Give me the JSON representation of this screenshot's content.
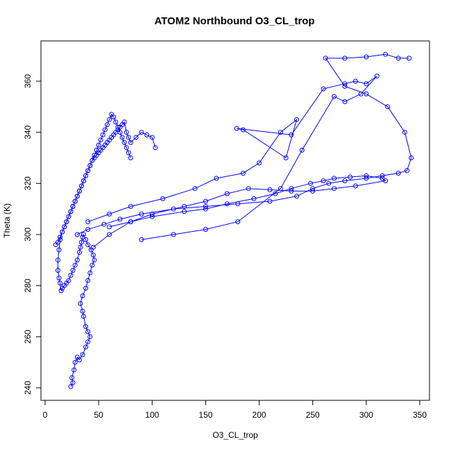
{
  "chart_data": {
    "type": "scatter",
    "title": "ATOM2 Northbound O3_CL_trop",
    "xlabel": "O3_CL_trop",
    "ylabel": "Theta (K)",
    "xlim": [
      0,
      350
    ],
    "ylim": [
      240,
      370
    ],
    "x_ticks": [
      0,
      50,
      100,
      150,
      200,
      250,
      300,
      350
    ],
    "y_ticks": [
      240,
      260,
      280,
      300,
      320,
      340,
      360
    ],
    "grid": false,
    "legend": "none",
    "color": "#0000ff",
    "marker": "open-circle",
    "connected": true,
    "series": [
      {
        "x": [
          24,
          26,
          25,
          27,
          28,
          30,
          32,
          35,
          38,
          40,
          42,
          40,
          38,
          36,
          35,
          33,
          35,
          38,
          40,
          42,
          44,
          46,
          45,
          43,
          40,
          38,
          36,
          35,
          34,
          33,
          32,
          30,
          28,
          26,
          24,
          22,
          20,
          18,
          16,
          15,
          14,
          13,
          12,
          12,
          13,
          14,
          16,
          18,
          20,
          22,
          24,
          26,
          28,
          30,
          32,
          34,
          36,
          38,
          40,
          42,
          44,
          46,
          48,
          50,
          52,
          54,
          56,
          58,
          60,
          62,
          64,
          66,
          68,
          70,
          72,
          74,
          76,
          78,
          80,
          85,
          90,
          95,
          100,
          103
        ],
        "y": [
          240.5,
          242,
          244,
          247,
          250,
          252,
          251,
          253,
          256,
          258,
          260,
          262,
          264,
          268,
          270,
          273,
          276,
          279,
          282,
          285,
          288,
          290,
          292,
          294,
          296,
          298,
          300,
          299,
          297,
          295,
          293,
          290,
          288,
          286,
          284,
          282,
          281,
          280,
          279,
          278,
          281,
          283,
          286,
          290,
          294,
          298,
          301,
          303,
          305,
          307,
          309,
          311,
          313,
          315,
          317,
          319,
          321,
          323,
          325,
          327,
          329,
          330,
          331,
          332,
          333,
          334,
          335,
          336,
          337,
          338,
          339,
          340,
          341,
          342,
          343,
          344,
          340,
          338,
          336,
          338,
          340,
          339,
          338,
          334
        ]
      },
      {
        "x": [
          10,
          12,
          14,
          16,
          18,
          20,
          22,
          24,
          26,
          28,
          30,
          32,
          34,
          36,
          38,
          40,
          42,
          44,
          46,
          48,
          50,
          52,
          54,
          56,
          58,
          60,
          62,
          64,
          66,
          68,
          70,
          72,
          74,
          76,
          78,
          80
        ],
        "y": [
          296,
          297,
          299,
          301,
          303,
          305,
          307,
          309,
          311,
          313,
          315,
          317,
          319,
          321,
          323,
          325,
          327,
          329,
          331,
          333,
          335,
          337,
          339,
          341,
          343,
          345,
          347,
          346,
          344,
          342,
          340,
          338,
          336,
          334,
          332,
          330
        ]
      },
      {
        "x": [
          30,
          40,
          55,
          70,
          90,
          120,
          150,
          180,
          210,
          235,
          250,
          265,
          280,
          300,
          315,
          330,
          338,
          342,
          336,
          320,
          300,
          280,
          262,
          280,
          300,
          318,
          330,
          340
        ],
        "y": [
          300,
          302,
          304,
          306,
          308,
          310,
          311,
          312,
          313,
          315,
          318,
          320,
          321,
          322,
          323,
          324,
          325,
          330,
          340,
          350,
          355,
          358,
          369,
          369,
          369.5,
          370.5,
          369,
          369
        ]
      },
      {
        "x": [
          40,
          60,
          80,
          110,
          140,
          160,
          185,
          200,
          220,
          235,
          225,
          185,
          179,
          230,
          260,
          280,
          290,
          300,
          310,
          295,
          280,
          270,
          240,
          220,
          180,
          150,
          120,
          90
        ],
        "y": [
          305,
          308,
          311,
          314,
          318,
          322,
          324,
          328,
          340,
          345,
          330,
          341,
          341.5,
          339,
          357,
          359,
          360,
          359,
          362,
          355,
          352,
          354,
          333,
          318,
          305,
          302,
          300,
          298
        ]
      },
      {
        "x": [
          45,
          60,
          80,
          100,
          130,
          150,
          170,
          195,
          215,
          230,
          248,
          260,
          270,
          285,
          300,
          315,
          318,
          290,
          270,
          250,
          230,
          210,
          190,
          170,
          150,
          130,
          100,
          80,
          60
        ],
        "y": [
          295,
          300,
          305,
          307,
          309,
          310,
          312,
          314,
          316,
          318,
          320,
          321,
          322,
          322.5,
          323,
          322,
          321,
          319,
          318,
          317,
          317,
          317.5,
          318,
          316,
          313,
          311,
          308,
          305,
          303
        ]
      }
    ]
  }
}
